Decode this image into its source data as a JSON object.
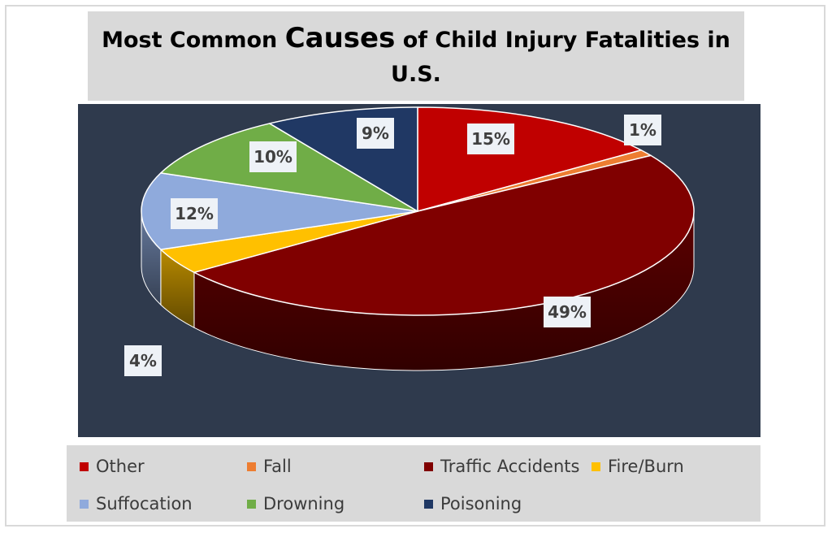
{
  "chart_data": {
    "type": "pie",
    "title_parts": [
      "Most Common ",
      "Causes",
      " of Child Injury Fatalities in U.S."
    ],
    "categories": [
      "Other",
      "Fall",
      "Traffic Accidents",
      "Fire/Burn",
      "Suffocation",
      "Drowning",
      "Poisoning"
    ],
    "values": [
      15,
      1,
      49,
      4,
      12,
      10,
      9
    ],
    "labels": [
      "15%",
      "1%",
      "49%",
      "4%",
      "12%",
      "10%",
      "9%"
    ],
    "colors": [
      "#c00000",
      "#ed7d31",
      "#800000",
      "#ffc000",
      "#8faadc",
      "#70ad47",
      "#203864"
    ],
    "legend_position": "bottom"
  }
}
